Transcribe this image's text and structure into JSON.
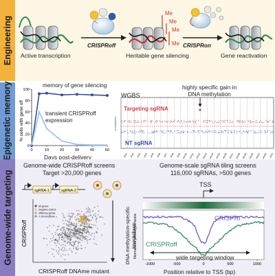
{
  "engineering": {
    "section_label": "Engineering",
    "caption_active": "Active transcription",
    "caption_silencing": "Heritable gene silencing",
    "caption_reactivation": "Gene reactivation",
    "tool_off": "CRISPRoff",
    "tool_on": "CRISPRon",
    "mark": "Me"
  },
  "epigenetic": {
    "section_label": "Epigenetic memory",
    "memory_label": "memory of gene silencing",
    "transient_label": "transient CRISPRoff\nexpression",
    "ylabel": "% cells with gene off",
    "xlabel": "Days post-delivery",
    "wgbs_label": "WGBS",
    "gain_label": "highly specific gain in\nDNA methylation",
    "targeting_label": "Targeting sgRNA",
    "nt_label": "NT sgRNA",
    "chromosomes": [
      "chr1",
      "chr2",
      "chr3",
      "chr4",
      "chr5",
      "chr6",
      "chr7",
      "chr8",
      "chr9",
      "chr10",
      "chr11",
      "chr12",
      "chr13",
      "chr14",
      "chr15",
      "chr16",
      "chr17",
      "chr18",
      "chr19",
      "chr20",
      "chr21",
      "chr22",
      "chrX"
    ],
    "chart_data": {
      "type": "line",
      "x": [
        0,
        5,
        10,
        20,
        30,
        40,
        50
      ],
      "series": [
        {
          "values": [
            0,
            92,
            93,
            90,
            91,
            90,
            89
          ]
        },
        {
          "values": [
            0,
            60,
            30,
            8,
            2,
            1,
            1
          ]
        }
      ],
      "xlim": [
        0,
        50
      ],
      "ylim": [
        0,
        100
      ],
      "xticks": [
        0,
        10,
        20,
        30,
        40,
        50
      ],
      "yticks": [
        0,
        20,
        40,
        60,
        80,
        100
      ],
      "colors": {
        "memory": "#2f4f9f",
        "transient": "#9ec5ea"
      }
    }
  },
  "genome_wide": {
    "section_label": "Genome-wide targeting",
    "left_title": "Genome-wide CRISPRoff screens",
    "left_subtitle": "Target >20,000 genes",
    "right_title": "Genome-scale sgRNA tiling screens",
    "right_subtitle": "116,000 sgRNAs, >500 genes",
    "sgrna1": "sgRNA-1",
    "sgrna2": "sgRNA-2",
    "legend": [
      "all genes",
      "negative control",
      "olfactory genes",
      "Y chromosome"
    ],
    "scatter_ylabel": "CRISPRoff",
    "scatter_xlabel": "CRISPRoff DNAme mutant",
    "knockdown_label": "DNA methylation-specific\nknockdown",
    "tss_label": "TSS",
    "crispri_label": "CRISPRi",
    "crisproff_label": "CRISPRoff",
    "window_label": "wide targeting window",
    "tiling_ylabel": "Normalized phenotype score",
    "tiling_xlabel": "Position relative to TSS (bp)",
    "tiling_xticks": [
      "-1000",
      "-500",
      "0",
      "500",
      "1000"
    ],
    "colors": {
      "crispri": "#6a5acd",
      "crisproff": "#2e8b6e",
      "scatter": "#555555",
      "highlight": "#e8a13a"
    }
  }
}
